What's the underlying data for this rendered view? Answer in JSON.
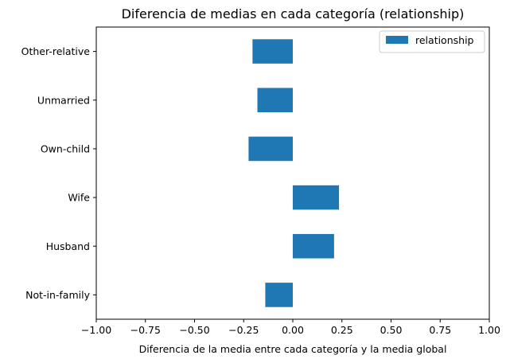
{
  "chart_data": {
    "type": "bar",
    "orientation": "horizontal",
    "title": "Diferencia de medias en cada categoría (relationship)",
    "xlabel": "Diferencia de la media entre cada categoría y la media global",
    "ylabel": "",
    "xlim": [
      -1.0,
      1.0
    ],
    "x_ticks": [
      "−1.00",
      "−0.75",
      "−0.50",
      "−0.25",
      "0.00",
      "0.25",
      "0.50",
      "0.75",
      "1.00"
    ],
    "x_tick_values": [
      -1.0,
      -0.75,
      -0.5,
      -0.25,
      0.0,
      0.25,
      0.5,
      0.75,
      1.0
    ],
    "categories": [
      "Not-in-family",
      "Husband",
      "Wife",
      "Own-child",
      "Unmarried",
      "Other-relative"
    ],
    "series": [
      {
        "name": "relationship",
        "color": "#1f77b4",
        "values": [
          -0.14,
          0.21,
          0.235,
          -0.225,
          -0.18,
          -0.205
        ]
      }
    ],
    "legend_position": "top-right",
    "grid": false
  }
}
